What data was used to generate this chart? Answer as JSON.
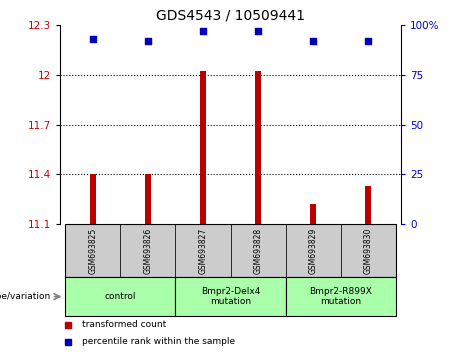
{
  "title": "GDS4543 / 10509441",
  "samples": [
    "GSM693825",
    "GSM693826",
    "GSM693827",
    "GSM693828",
    "GSM693829",
    "GSM693830"
  ],
  "bar_values": [
    11.4,
    11.4,
    12.02,
    12.02,
    11.22,
    11.33
  ],
  "bar_base": 11.1,
  "percentile_values": [
    93,
    92,
    97,
    97,
    92,
    92
  ],
  "ylim": [
    11.1,
    12.3
  ],
  "yticks": [
    11.1,
    11.4,
    11.7,
    12.0,
    12.3
  ],
  "ytick_labels": [
    "11.1",
    "11.4",
    "11.7",
    "12",
    "12.3"
  ],
  "right_yticks": [
    0,
    25,
    50,
    75,
    100
  ],
  "right_ytick_labels": [
    "0",
    "25",
    "50",
    "75",
    "100%"
  ],
  "hlines": [
    11.4,
    11.7,
    12.0
  ],
  "bar_color": "#bb0000",
  "dot_color": "#0000bb",
  "bar_width": 0.12,
  "group_defs": [
    [
      0,
      1,
      "control"
    ],
    [
      2,
      3,
      "Bmpr2-Delx4\nmutation"
    ],
    [
      4,
      5,
      "Bmpr2-R899X\nmutation"
    ]
  ],
  "xlabel_genotype": "genotype/variation",
  "legend_entries": [
    {
      "color": "#bb0000",
      "label": "transformed count"
    },
    {
      "color": "#0000bb",
      "label": "percentile rank within the sample"
    }
  ],
  "tick_label_color_left": "#cc0000",
  "tick_label_color_right": "#0000cc",
  "sample_area_color": "#cccccc",
  "group_area_color": "#aaffaa"
}
